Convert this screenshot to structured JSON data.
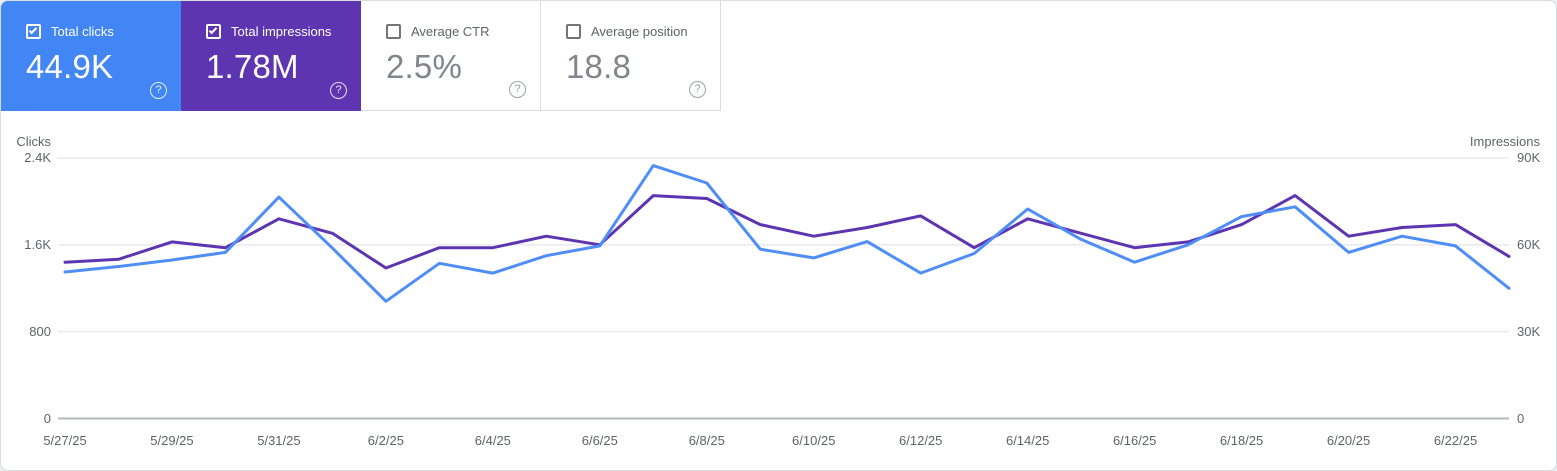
{
  "cards": [
    {
      "id": "total-clicks",
      "label": "Total clicks",
      "value": "44.9K",
      "checked": true,
      "accent": "#4285f4"
    },
    {
      "id": "total-impressions",
      "label": "Total impressions",
      "value": "1.78M",
      "checked": true,
      "accent": "#5e35b1"
    },
    {
      "id": "average-ctr",
      "label": "Average CTR",
      "value": "2.5%",
      "checked": false
    },
    {
      "id": "average-position",
      "label": "Average position",
      "value": "18.8",
      "checked": false
    }
  ],
  "icons": {
    "help": "?"
  },
  "chart_data": {
    "type": "line",
    "x": [
      "5/27/25",
      "5/28/25",
      "5/29/25",
      "5/30/25",
      "5/31/25",
      "6/1/25",
      "6/2/25",
      "6/3/25",
      "6/4/25",
      "6/5/25",
      "6/6/25",
      "6/7/25",
      "6/8/25",
      "6/9/25",
      "6/10/25",
      "6/11/25",
      "6/12/25",
      "6/13/25",
      "6/14/25",
      "6/15/25",
      "6/16/25",
      "6/17/25",
      "6/18/25",
      "6/19/25",
      "6/20/25",
      "6/21/25",
      "6/22/25",
      "6/23/25"
    ],
    "x_tick_every": 2,
    "series": [
      {
        "name": "Clicks",
        "axis": "left",
        "color": "#4f8ef7",
        "values": [
          1350,
          1400,
          1460,
          1530,
          2040,
          1570,
          1080,
          1430,
          1340,
          1500,
          1590,
          2330,
          2170,
          1560,
          1480,
          1630,
          1340,
          1520,
          1930,
          1650,
          1440,
          1600,
          1860,
          1950,
          1530,
          1680,
          1590,
          1200
        ]
      },
      {
        "name": "Impressions",
        "axis": "right",
        "color": "#5e35b1",
        "values": [
          54000,
          55000,
          61000,
          59000,
          69000,
          64000,
          52000,
          59000,
          59000,
          63000,
          60000,
          77000,
          76000,
          67000,
          63000,
          66000,
          70000,
          59000,
          69000,
          64000,
          59000,
          61000,
          67000,
          77000,
          63000,
          66000,
          67000,
          56000
        ]
      }
    ],
    "left_axis": {
      "title": "Clicks",
      "max": 2400,
      "ticks": [
        {
          "label": "2.4K",
          "value": 2400
        },
        {
          "label": "1.6K",
          "value": 1600
        },
        {
          "label": "800",
          "value": 800
        },
        {
          "label": "0",
          "value": 0
        }
      ]
    },
    "right_axis": {
      "title": "Impressions",
      "max": 90000,
      "ticks": [
        {
          "label": "90K",
          "value": 90000
        },
        {
          "label": "60K",
          "value": 60000
        },
        {
          "label": "30K",
          "value": 30000
        },
        {
          "label": "0",
          "value": 0
        }
      ]
    },
    "grid": "horizontal",
    "legend": "none",
    "colors": {
      "gridline": "#e9eaed",
      "axis_line": "#b3b7bc",
      "tick_text": "#5f6368"
    }
  }
}
